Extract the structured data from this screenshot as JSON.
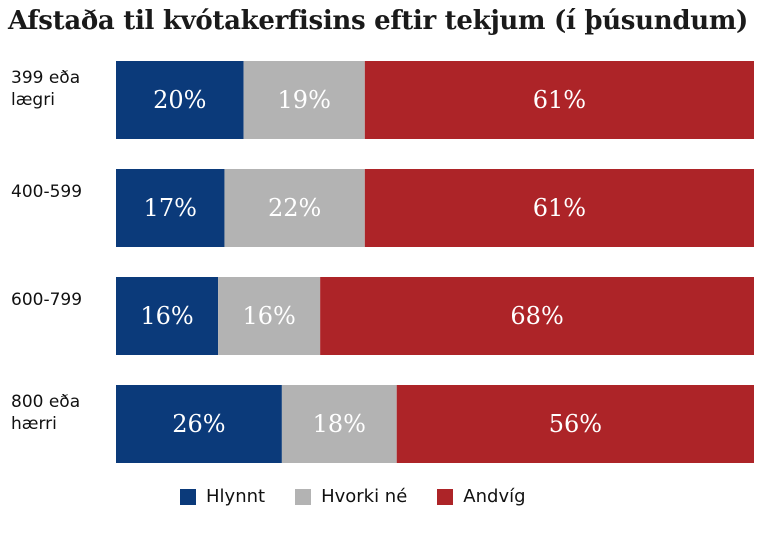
{
  "chart_data": {
    "type": "bar",
    "orientation": "horizontal",
    "stacked": true,
    "title": "Afstaða til kvótakerfisins eftir tekjum (í þúsundum)",
    "categories": [
      "399 eða lægri",
      "400-599",
      "600-799",
      "800 eða hærri"
    ],
    "series": [
      {
        "name": "Hlynnt",
        "color": "#0b3a7a",
        "values": [
          20,
          17,
          16,
          26
        ]
      },
      {
        "name": "Hvorki né",
        "color": "#b3b3b3",
        "values": [
          19,
          22,
          16,
          18
        ]
      },
      {
        "name": "Andvíg",
        "color": "#ad2428",
        "values": [
          61,
          61,
          68,
          56
        ]
      }
    ],
    "value_suffix": "%",
    "xlim": [
      0,
      100
    ],
    "grid": false,
    "legend_position": "bottom"
  }
}
